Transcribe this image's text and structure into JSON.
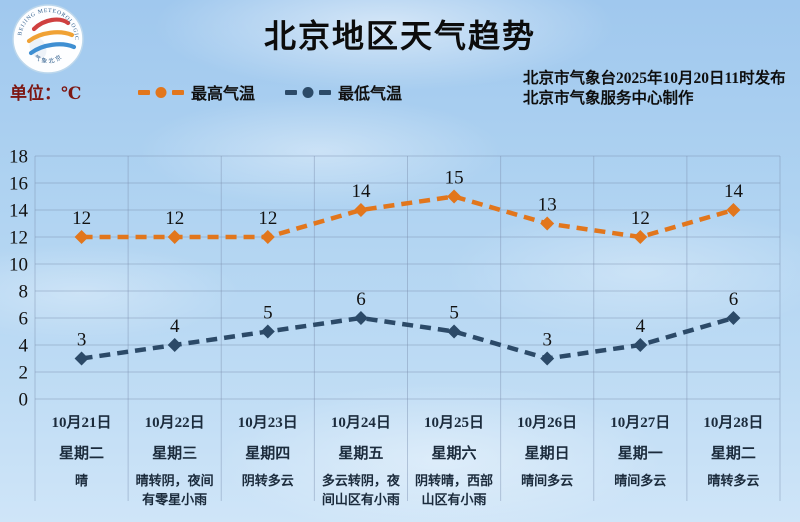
{
  "header": {
    "title": "北京地区天气趋势",
    "unit_label": "单位：℃",
    "publisher_line1": "北京市气象台2025年10月20日11时发布",
    "publisher_line2": "北京市气象服务中心制作",
    "logo": {
      "rim_text_top": "BEIJING METEOROLOGICAL SERVICE",
      "rim_text_bottom": "气象北京"
    }
  },
  "legend": [
    {
      "label": "最高气温",
      "color": "#E2761C"
    },
    {
      "label": "最低气温",
      "color": "#2C4A68"
    }
  ],
  "chart_data": {
    "type": "line",
    "x": [
      "10月21日",
      "10月22日",
      "10月23日",
      "10月24日",
      "10月25日",
      "10月26日",
      "10月27日",
      "10月28日"
    ],
    "weekdays": [
      "星期二",
      "星期三",
      "星期四",
      "星期五",
      "星期六",
      "星期日",
      "星期一",
      "星期二"
    ],
    "weather": [
      [
        "晴"
      ],
      [
        "晴转阴，夜间",
        "有零星小雨"
      ],
      [
        "阴转多云"
      ],
      [
        "多云转阴，夜",
        "间山区有小雨"
      ],
      [
        "阴转晴，西部",
        "山区有小雨"
      ],
      [
        "晴间多云"
      ],
      [
        "晴间多云"
      ],
      [
        "晴转多云"
      ]
    ],
    "series": [
      {
        "name": "最高气温",
        "color": "#E2761C",
        "values": [
          12,
          12,
          12,
          14,
          15,
          13,
          12,
          14
        ]
      },
      {
        "name": "最低气温",
        "color": "#2C4A68",
        "values": [
          3,
          4,
          5,
          6,
          5,
          3,
          4,
          6
        ]
      }
    ],
    "title": "北京地区天气趋势",
    "xlabel": "",
    "ylabel": "℃",
    "ylim": [
      0,
      18
    ],
    "ytick_step": 2,
    "grid": true,
    "line_style": "dashed",
    "legend_position": "top-left"
  }
}
